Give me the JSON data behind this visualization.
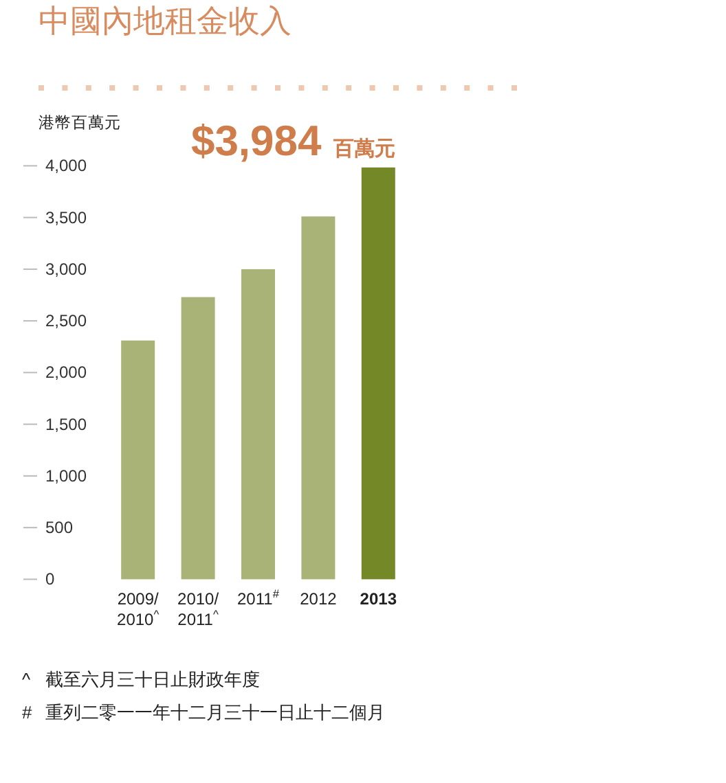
{
  "chart_data": {
    "type": "bar",
    "title": "中國內地租金收入",
    "ylabel": "港幣百萬元",
    "categories": [
      "2009/\n2010$^{^}$",
      "2010/\n2011$^{^}$",
      "2011$^{#}$",
      "2012",
      "2013"
    ],
    "values": [
      2310,
      2730,
      3000,
      3510,
      3984
    ],
    "colors": [
      "#aab377",
      "#aab377",
      "#aab377",
      "#aab377",
      "#758827"
    ],
    "ylim": [
      0,
      4000
    ],
    "yticks": [
      0,
      500,
      {
        "value": 1000,
        "label": "1,000"
      },
      {
        "value": 1500,
        "label": "1,500"
      },
      {
        "value": 2000,
        "label": "2,000"
      },
      {
        "value": 2500,
        "label": "2,500"
      },
      {
        "value": 3000,
        "label": "3,000"
      },
      {
        "value": 3500,
        "label": "3,500"
      },
      {
        "value": 4000,
        "label": "4,000"
      }
    ],
    "annotations": [
      {
        "text": "$3,984 百萬元",
        "x": "2013",
        "y": 3984
      },
      "^ 截至六月三十日止財政年度",
      "# 重列二零一一年十二月三十一日止十二個月"
    ]
  }
}
